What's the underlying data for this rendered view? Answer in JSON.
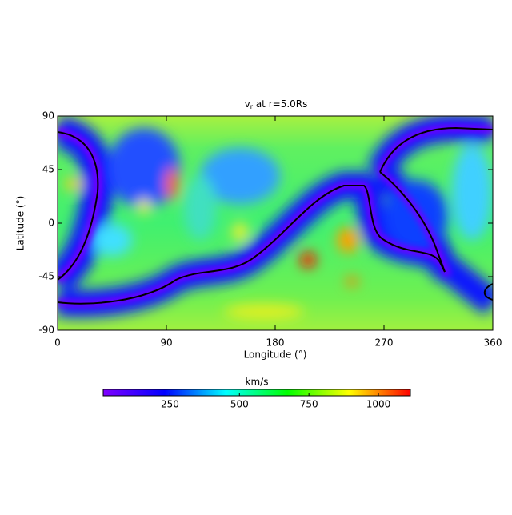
{
  "chart_data": {
    "type": "heatmap",
    "title": {
      "main": "v",
      "sub": "r",
      "rest": " at r=5.0Rs"
    },
    "xlabel": "Longitude (°)",
    "ylabel": "Latitude (°)",
    "xlim": [
      0,
      360
    ],
    "xticks": [
      0,
      90,
      180,
      270,
      360
    ],
    "ylim": [
      -90,
      90
    ],
    "yticks": [
      -90,
      -45,
      0,
      45,
      90
    ],
    "colorbar": {
      "label": "km/s",
      "lim": [
        10,
        1115
      ],
      "ticks": [
        250,
        500,
        750,
        1000
      ],
      "colors": [
        "#8000ff",
        "#0000ff",
        "#00ffff",
        "#00ff00",
        "#ffff00",
        "#ff0000"
      ]
    }
  }
}
